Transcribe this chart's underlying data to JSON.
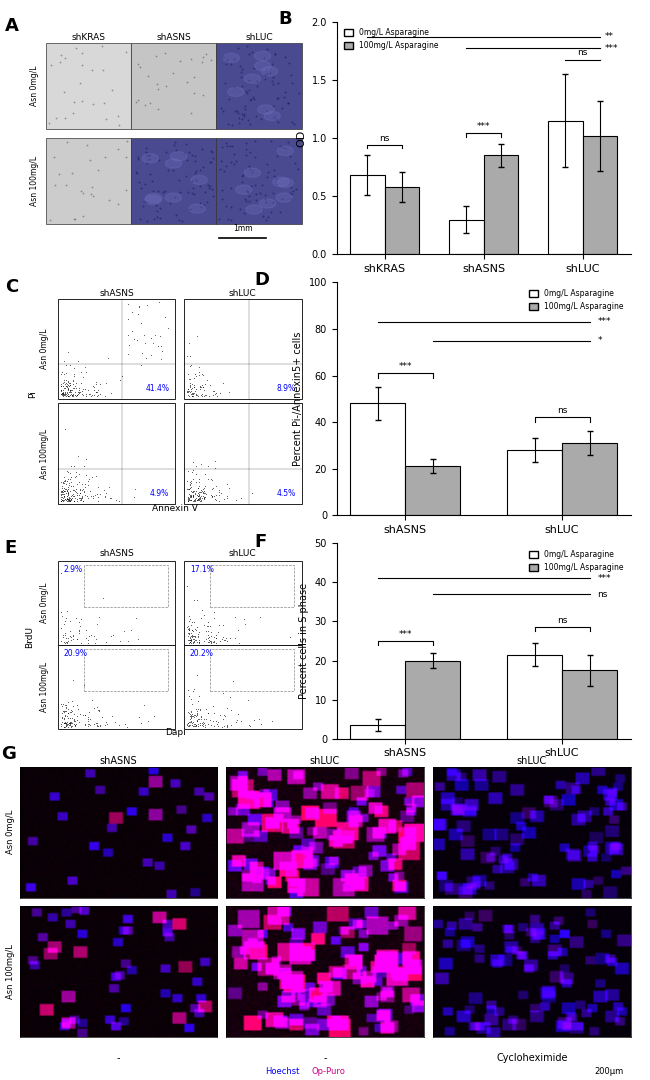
{
  "panel_B": {
    "categories": [
      "shKRAS",
      "shASNS",
      "shLUC"
    ],
    "values_0": [
      0.68,
      0.3,
      1.15
    ],
    "values_100": [
      0.58,
      0.85,
      1.02
    ],
    "err_0": [
      0.17,
      0.12,
      0.4
    ],
    "err_100": [
      0.13,
      0.1,
      0.3
    ],
    "ylabel": "OD",
    "ylim": [
      0,
      2.0
    ],
    "yticks": [
      0.0,
      0.5,
      1.0,
      1.5,
      2.0
    ],
    "legend_0": "0mg/L Asparagine",
    "legend_100": "100mg/L Asparagine",
    "color_0": "#ffffff",
    "color_100": "#aaaaaa"
  },
  "panel_D": {
    "categories": [
      "shASNS",
      "shLUC"
    ],
    "values_0": [
      48.0,
      28.0
    ],
    "values_100": [
      21.0,
      31.0
    ],
    "err_0": [
      7.0,
      5.0
    ],
    "err_100": [
      3.0,
      5.0
    ],
    "ylabel": "Percent Pi-/Annexin5+ cells",
    "ylim": [
      0,
      100
    ],
    "yticks": [
      0,
      20,
      40,
      60,
      80,
      100
    ],
    "legend_0": "0mg/L Asparagine",
    "legend_100": "100mg/L Asparagine",
    "color_0": "#ffffff",
    "color_100": "#aaaaaa"
  },
  "panel_F": {
    "categories": [
      "shASNS",
      "shLUC"
    ],
    "values_0": [
      3.5,
      21.5
    ],
    "values_100": [
      20.0,
      17.5
    ],
    "err_0": [
      1.5,
      3.0
    ],
    "err_100": [
      2.0,
      4.0
    ],
    "ylabel": "Percent cells in S phase",
    "ylim": [
      0,
      50
    ],
    "yticks": [
      0,
      10,
      20,
      30,
      40,
      50
    ],
    "legend_0": "0mg/L Asparagine",
    "legend_100": "100mg/L Asparagine",
    "color_0": "#ffffff",
    "color_100": "#aaaaaa"
  },
  "bar_width": 0.35,
  "panel_G": {
    "col_titles": [
      "shASNS",
      "shLUC",
      "shLUC"
    ],
    "row_labels": [
      "Asn 0mg/L",
      "Asn 100mg/L"
    ],
    "bottom_labels": [
      "-",
      "-",
      "Cycloheximide"
    ],
    "legend_blue": "Hoechst",
    "legend_magenta": "Op-Puro",
    "scale_bar": "200μm"
  }
}
